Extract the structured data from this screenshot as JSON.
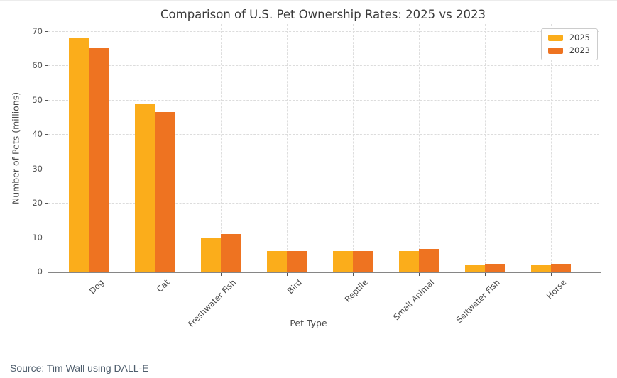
{
  "page": {
    "source_note": "Source: Tim Wall using DALL-E"
  },
  "chart_data": {
    "type": "bar",
    "title": "Comparison of U.S. Pet Ownership Rates: 2025 vs 2023",
    "xlabel": "Pet Type",
    "ylabel": "Number of Pets (millions)",
    "categories": [
      "Dog",
      "Cat",
      "Freshwater Fish",
      "Bird",
      "Reptile",
      "Small Animal",
      "Saltwater Fish",
      "Horse"
    ],
    "series": [
      {
        "name": "2025",
        "color": "#FBAD1B",
        "values": [
          68,
          49,
          10,
          6,
          6,
          6,
          2,
          2
        ]
      },
      {
        "name": "2023",
        "color": "#EE7321",
        "values": [
          65,
          46.5,
          11,
          6,
          6,
          6.7,
          2.2,
          2.2
        ]
      }
    ],
    "ylim": [
      0,
      72
    ],
    "yticks": [
      0,
      10,
      20,
      30,
      40,
      50,
      60,
      70
    ],
    "grid": true,
    "grid_style": "dashed",
    "legend_position": "upper right",
    "bar_orientation": "vertical",
    "x_tick_rotation_deg": 45
  }
}
